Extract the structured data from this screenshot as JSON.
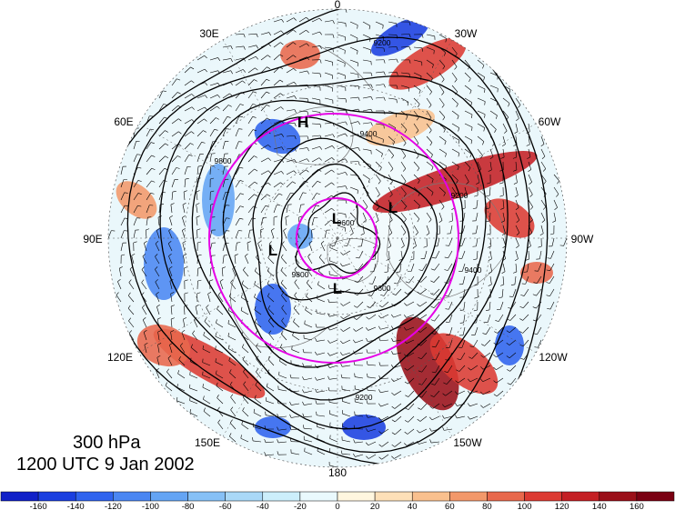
{
  "map": {
    "projection": "north-polar-stereographic",
    "longitude_labels": [
      "0",
      "30W",
      "60W",
      "90W",
      "120W",
      "150W",
      "180",
      "150E",
      "120E",
      "90E",
      "60E",
      "30E"
    ],
    "contour_labels": [
      "9200",
      "9400",
      "9600",
      "9800",
      "9200",
      "9600",
      "9400",
      "9200",
      "9800"
    ],
    "pressure_systems": [
      {
        "type": "H",
        "label": "H"
      },
      {
        "type": "L",
        "label": "L"
      },
      {
        "type": "L",
        "label": "L"
      },
      {
        "type": "L",
        "label": "L"
      },
      {
        "type": "L",
        "label": "L"
      }
    ],
    "overlay_circle_color": "#e600e6",
    "contour_color": "#000000"
  },
  "title": {
    "level": "300 hPa",
    "time": "1200 UTC 9 Jan 2002"
  },
  "colorbar": {
    "ticks": [
      "-160",
      "-140",
      "-120",
      "-100",
      "-80",
      "-60",
      "-40",
      "-20",
      "0",
      "20",
      "40",
      "60",
      "80",
      "100",
      "120",
      "140",
      "160"
    ],
    "colors": [
      "#1020c8",
      "#1a3fe0",
      "#2f63ee",
      "#4a86f2",
      "#64a4f4",
      "#86c0f6",
      "#a9d8f7",
      "#cceefb",
      "#eaf9fd",
      "#fff6df",
      "#fde0b8",
      "#f9c08e",
      "#f2986a",
      "#e8684c",
      "#dc3a32",
      "#c41f24",
      "#9a0f18",
      "#7a0012"
    ]
  }
}
